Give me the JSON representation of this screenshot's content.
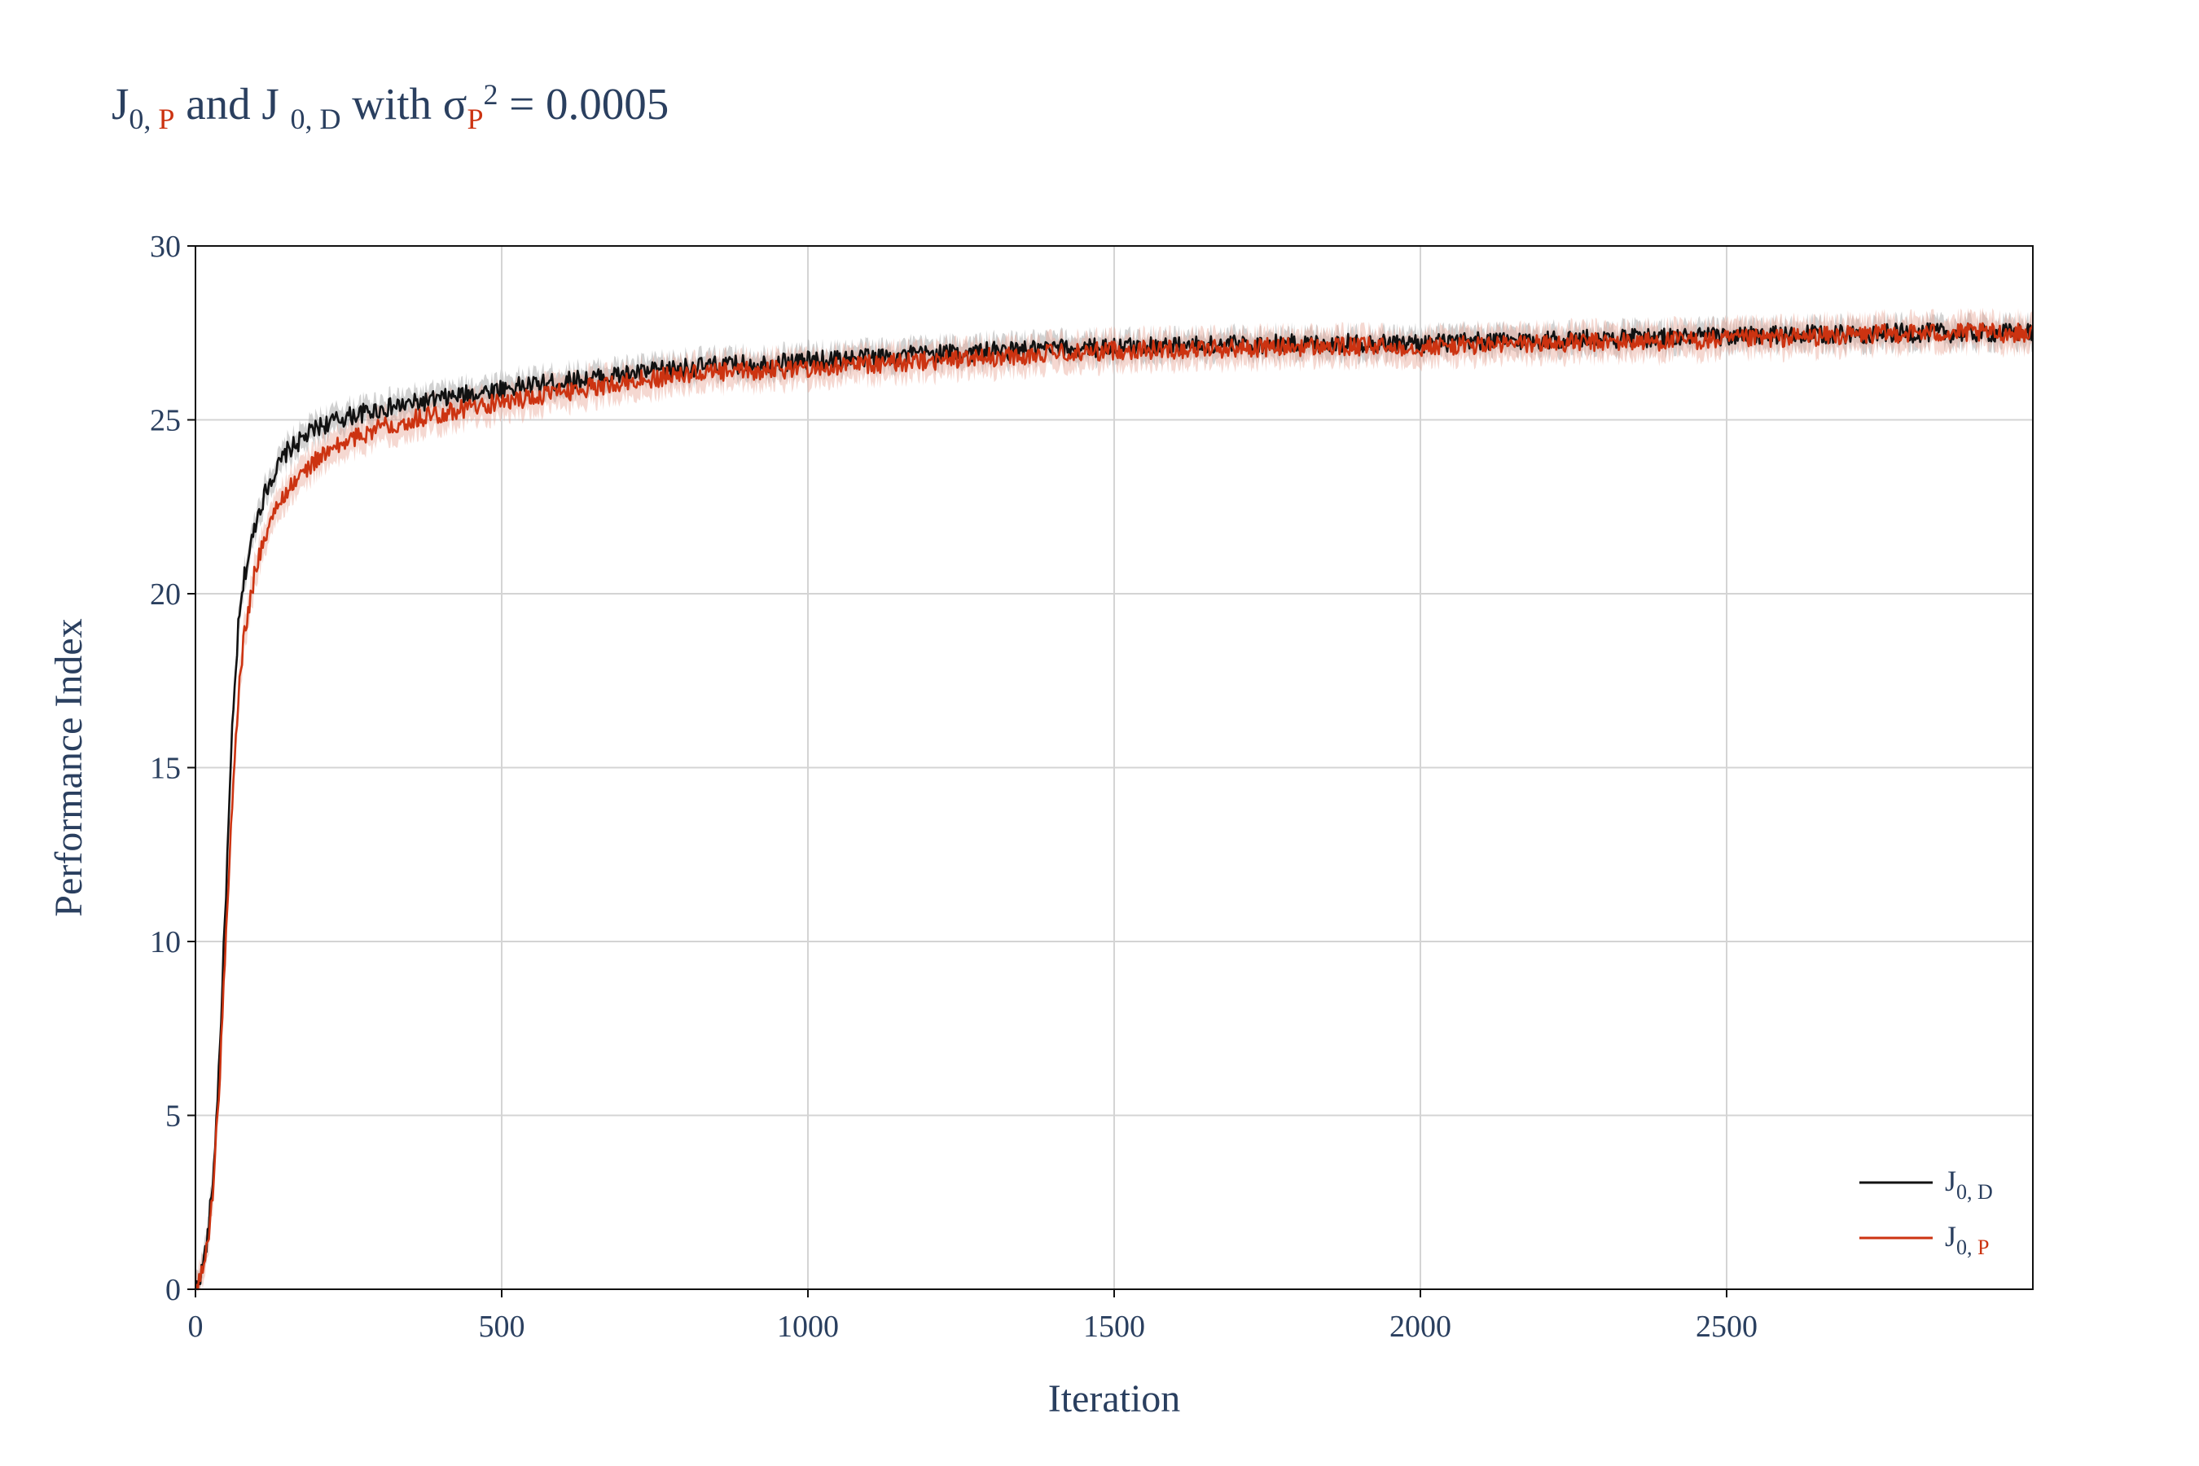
{
  "title": {
    "j": "J",
    "sub1_prefix": "0, ",
    "sub1_accent": "P",
    "and": " and J ",
    "sub2": "0, D",
    "with": "  with σ",
    "sub3": "P",
    "sup3": "2",
    "rest": " = 0.0005"
  },
  "colors": {
    "j0d": "#111111",
    "j0p": "#cc3311",
    "grid": "#d4d4d4",
    "band_d": "#9a9a9a",
    "band_p": "#e8a898"
  },
  "chart_data": {
    "type": "line",
    "xlabel": "Iteration",
    "ylabel": "Performance Index",
    "xlim": [
      0,
      3000
    ],
    "ylim": [
      0,
      30
    ],
    "x_ticks": [
      0,
      500,
      1000,
      1500,
      2000,
      2500
    ],
    "x_tick_labels": [
      "0",
      "500",
      "1000",
      "1500",
      "2000",
      "2500"
    ],
    "y_ticks": [
      0,
      5,
      10,
      15,
      20,
      25,
      30
    ],
    "y_tick_labels": [
      "0",
      "5",
      "10",
      "15",
      "20",
      "25",
      "30"
    ],
    "grid": true,
    "legend_position": "bottom-right",
    "x": [
      0,
      10,
      20,
      30,
      40,
      50,
      60,
      70,
      80,
      100,
      120,
      150,
      200,
      250,
      300,
      400,
      500,
      600,
      700,
      800,
      1000,
      1200,
      1500,
      1800,
      2000,
      2200,
      2500,
      2800,
      3000
    ],
    "series": [
      {
        "name": "J0, D",
        "legend_main": "J",
        "legend_sub": "0, D",
        "values": [
          0,
          0.5,
          1.5,
          3.5,
          7,
          11.5,
          16,
          19,
          20.5,
          22.2,
          23.2,
          24.1,
          24.8,
          25.1,
          25.3,
          25.6,
          25.9,
          26.1,
          26.3,
          26.5,
          26.7,
          26.9,
          27.1,
          27.2,
          27.2,
          27.3,
          27.4,
          27.5,
          27.5
        ],
        "band": 0.35
      },
      {
        "name": "J0, P",
        "legend_main": "J",
        "legend_sub": "0, P",
        "values": [
          0,
          0.4,
          1.3,
          3.2,
          6.3,
          10.2,
          14,
          17,
          18.9,
          20.9,
          22.0,
          23.0,
          23.9,
          24.4,
          24.8,
          25.2,
          25.5,
          25.8,
          26.1,
          26.3,
          26.5,
          26.7,
          27.0,
          27.1,
          27.1,
          27.2,
          27.3,
          27.5,
          27.5
        ],
        "band": 0.45
      }
    ]
  }
}
